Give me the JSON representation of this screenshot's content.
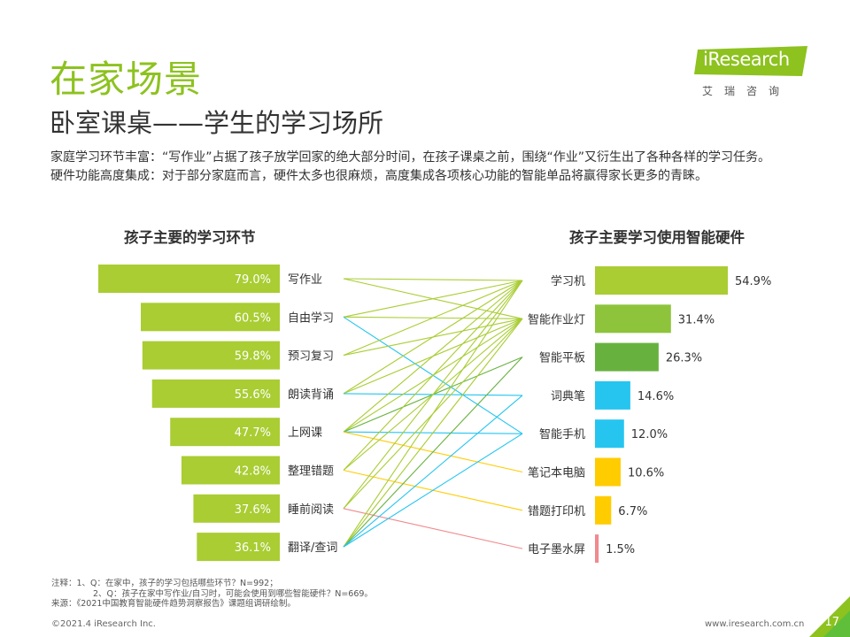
{
  "header": {
    "title": "在家场景",
    "subtitle": "卧室课桌——学生的学习场所"
  },
  "logo": {
    "name": "iResearch",
    "sub": "艾瑞咨询"
  },
  "intro": {
    "line1": "家庭学习环节丰富：“写作业”占据了孩子放学回家的绝大部分时间，在孩子课桌之前，围绕“作业”又衍生出了各种各样的学习任务。",
    "line2": "硬件功能高度集成：对于部分家庭而言，硬件太多也很麻烦，高度集成各项核心功能的智能单品将赢得家长更多的青睐。"
  },
  "chart_data": [
    {
      "type": "bar",
      "orientation": "horizontal",
      "title": "孩子主要的学习环节",
      "categories": [
        "写作业",
        "自由学习",
        "预习复习",
        "朗读背诵",
        "上网课",
        "整理错题",
        "睡前阅读",
        "翻译/查词"
      ],
      "values": [
        79.0,
        60.5,
        59.8,
        55.6,
        47.7,
        42.8,
        37.6,
        36.1
      ],
      "value_labels": [
        "79.0%",
        "60.5%",
        "59.8%",
        "55.6%",
        "47.7%",
        "42.8%",
        "37.6%",
        "36.1%"
      ],
      "unit": "%",
      "bar_direction": "right-to-left",
      "colors": [
        "#a9cd33"
      ]
    },
    {
      "type": "bar",
      "orientation": "horizontal",
      "title": "孩子主要学习使用智能硬件",
      "categories": [
        "学习机",
        "智能作业灯",
        "智能平板",
        "词典笔",
        "智能手机",
        "笔记本电脑",
        "错题打印机",
        "电子墨水屏"
      ],
      "values": [
        54.9,
        31.4,
        26.3,
        14.6,
        12.0,
        10.6,
        6.7,
        1.5
      ],
      "value_labels": [
        "54.9%",
        "31.4%",
        "26.3%",
        "14.6%",
        "12.0%",
        "10.6%",
        "6.7%",
        "1.5%"
      ],
      "unit": "%",
      "colors": [
        "#a9cd33",
        "#8dc43c",
        "#67b23f",
        "#25c5f0",
        "#25c5f0",
        "#ffcc00",
        "#ffcc00",
        "#f08a8e"
      ]
    },
    {
      "type": "connections",
      "links": [
        {
          "from": "写作业",
          "to": [
            "学习机",
            "智能作业灯"
          ]
        },
        {
          "from": "自由学习",
          "to": [
            "学习机",
            "智能作业灯",
            "智能手机"
          ]
        },
        {
          "from": "预习复习",
          "to": [
            "学习机",
            "智能作业灯"
          ]
        },
        {
          "from": "朗读背诵",
          "to": [
            "学习机",
            "智能作业灯",
            "词典笔"
          ]
        },
        {
          "from": "上网课",
          "to": [
            "学习机",
            "智能作业灯",
            "智能平板",
            "智能手机",
            "笔记本电脑"
          ]
        },
        {
          "from": "整理错题",
          "to": [
            "学习机",
            "智能作业灯",
            "错题打印机"
          ]
        },
        {
          "from": "睡前阅读",
          "to": [
            "学习机",
            "智能作业灯",
            "电子墨水屏"
          ]
        },
        {
          "from": "翻译/查词",
          "to": [
            "学习机",
            "智能作业灯",
            "智能平板",
            "词典笔",
            "智能手机"
          ]
        }
      ]
    }
  ],
  "notes": {
    "line1": "注释：1、Q：在家中，孩子的学习包括哪些环节？N=992；",
    "line2": "2、Q：孩子在家中写作业/自习时，可能会使用到哪些智能硬件？N=669。",
    "line3": "来源：《2021中国教育智能硬件趋势洞察报告》课题组调研绘制。"
  },
  "footer": {
    "copyright": "©2021.4 iResearch Inc.",
    "url": "www.iresearch.com.cn",
    "page": "17"
  }
}
